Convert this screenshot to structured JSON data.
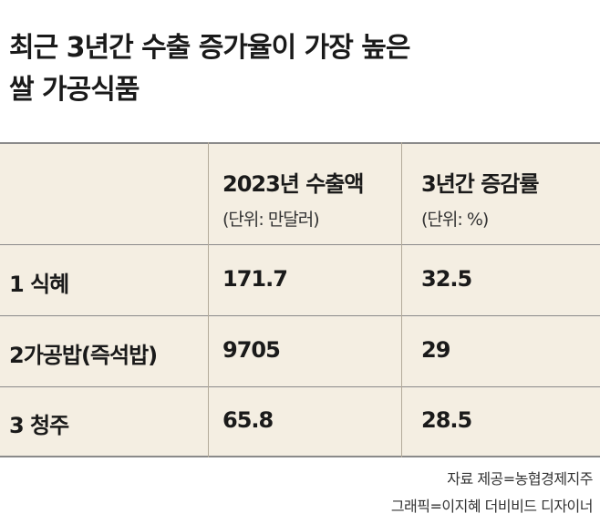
{
  "title_lines": [
    "최근 3년간 수출 증가율이 가장 높은",
    "쌀 가공식품"
  ],
  "colors": {
    "table_bg": "#f4eee2",
    "rule": "#8a8a8a",
    "text": "#1a1a1a"
  },
  "chart_data": {
    "type": "table",
    "title": "최근 3년간 수출 증가율이 가장 높은 쌀 가공식품",
    "columns": [
      {
        "label": "2023년 수출액",
        "unit": "(단위: 만달러)"
      },
      {
        "label": "3년간 증감률",
        "unit": "(단위: %)"
      }
    ],
    "rows": [
      {
        "label": "1 식혜",
        "export_2023": "171.7",
        "growth_3y": "32.5"
      },
      {
        "label": "2가공밥(즉석밥)",
        "export_2023": "9705",
        "growth_3y": "29"
      },
      {
        "label": "3 청주",
        "export_2023": "65.8",
        "growth_3y": "28.5"
      }
    ]
  },
  "source": {
    "line1": "자료 제공=농협경제지주",
    "line2": "그래픽=이지혜 더비비드 디자이너"
  }
}
